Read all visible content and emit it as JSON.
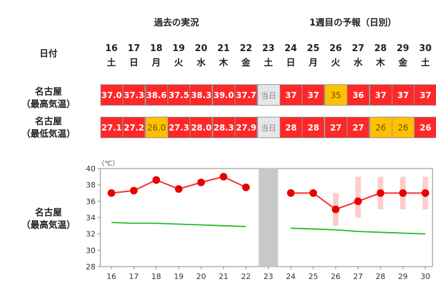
{
  "headers": {
    "past": "過去の実況",
    "forecast": "1週目の予報（日別）"
  },
  "date_label": "日付",
  "days": [
    {
      "date": "16",
      "dow": "土"
    },
    {
      "date": "17",
      "dow": "日"
    },
    {
      "date": "18",
      "dow": "月"
    },
    {
      "date": "19",
      "dow": "火"
    },
    {
      "date": "20",
      "dow": "水"
    },
    {
      "date": "21",
      "dow": "木"
    },
    {
      "date": "22",
      "dow": "金"
    },
    {
      "date": "23",
      "dow": "土"
    },
    {
      "date": "24",
      "dow": "日"
    },
    {
      "date": "25",
      "dow": "月"
    },
    {
      "date": "26",
      "dow": "火"
    },
    {
      "date": "27",
      "dow": "水"
    },
    {
      "date": "28",
      "dow": "木"
    },
    {
      "date": "29",
      "dow": "金"
    },
    {
      "date": "30",
      "dow": "土"
    }
  ],
  "rows": {
    "max_label": [
      "名古屋",
      "（最高気温）"
    ],
    "min_label": [
      "名古屋",
      "（最低気温）"
    ],
    "max": [
      {
        "v": "37.0",
        "c": "red"
      },
      {
        "v": "37.3",
        "c": "red"
      },
      {
        "v": "38.6",
        "c": "red"
      },
      {
        "v": "37.5",
        "c": "red"
      },
      {
        "v": "38.3",
        "c": "red"
      },
      {
        "v": "39.0",
        "c": "red"
      },
      {
        "v": "37.7",
        "c": "red"
      },
      {
        "v": "当日",
        "c": "gray"
      },
      {
        "v": "37",
        "c": "red"
      },
      {
        "v": "37",
        "c": "red"
      },
      {
        "v": "35",
        "c": "yellow"
      },
      {
        "v": "36",
        "c": "red"
      },
      {
        "v": "37",
        "c": "red"
      },
      {
        "v": "37",
        "c": "red"
      },
      {
        "v": "37",
        "c": "red"
      }
    ],
    "min": [
      {
        "v": "27.1",
        "c": "red"
      },
      {
        "v": "27.2",
        "c": "red"
      },
      {
        "v": "26.0",
        "c": "yellow"
      },
      {
        "v": "27.3",
        "c": "red"
      },
      {
        "v": "28.0",
        "c": "red"
      },
      {
        "v": "28.3",
        "c": "red"
      },
      {
        "v": "27.9",
        "c": "red"
      },
      {
        "v": "当日",
        "c": "gray"
      },
      {
        "v": "28",
        "c": "red"
      },
      {
        "v": "28",
        "c": "red"
      },
      {
        "v": "27",
        "c": "red"
      },
      {
        "v": "27",
        "c": "red"
      },
      {
        "v": "26",
        "c": "yellow"
      },
      {
        "v": "26",
        "c": "yellow"
      },
      {
        "v": "26",
        "c": "red"
      }
    ]
  },
  "chart_label": [
    "名古屋",
    "（最高気温）"
  ],
  "colors": {
    "red": "#ff2828",
    "yellow": "#ffc000",
    "gray": "#e6e6e6",
    "normal_line": "#22bb22",
    "range_band": "#ffcccc",
    "today_band": "#c8c8c8"
  },
  "chart_data": {
    "type": "line",
    "unit_label": "（℃）",
    "x": [
      16,
      17,
      18,
      19,
      20,
      21,
      22,
      23,
      24,
      25,
      26,
      27,
      28,
      29,
      30
    ],
    "ylim": [
      28,
      40
    ],
    "yticks": [
      28,
      30,
      32,
      34,
      36,
      38,
      40
    ],
    "grid": false,
    "series": [
      {
        "role": "observed_max",
        "x": [
          16,
          17,
          18,
          19,
          20,
          21,
          22
        ],
        "values": [
          37.0,
          37.3,
          38.6,
          37.5,
          38.3,
          39.0,
          37.7
        ]
      },
      {
        "role": "forecast_max",
        "x": [
          24,
          25,
          26,
          27,
          28,
          29,
          30
        ],
        "values": [
          37,
          37,
          35,
          36,
          37,
          37,
          37
        ]
      },
      {
        "role": "forecast_range",
        "x": [
          26,
          27,
          28,
          29,
          30
        ],
        "low": [
          33,
          34,
          35,
          35,
          35
        ],
        "high": [
          37,
          39,
          39,
          39,
          39
        ]
      },
      {
        "role": "normal_past",
        "x": [
          16,
          17,
          18,
          19,
          20,
          21,
          22
        ],
        "values": [
          33.4,
          33.3,
          33.3,
          33.2,
          33.1,
          33.0,
          32.9
        ]
      },
      {
        "role": "normal_future",
        "x": [
          24,
          25,
          26,
          27,
          28,
          29,
          30
        ],
        "values": [
          32.7,
          32.6,
          32.5,
          32.3,
          32.2,
          32.1,
          32.0
        ]
      }
    ],
    "shaded_x": 23
  }
}
